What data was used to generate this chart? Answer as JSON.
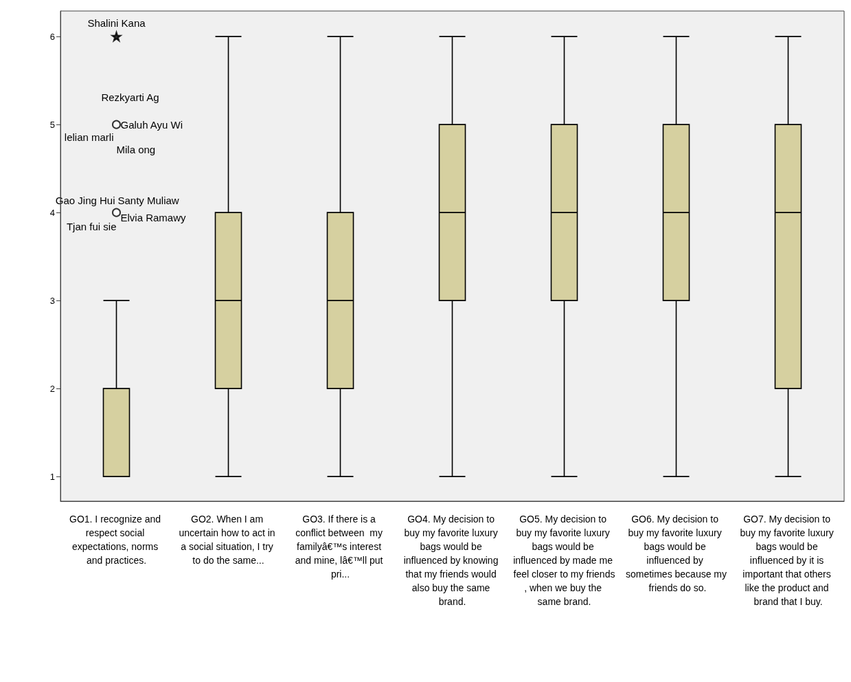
{
  "chart_data": {
    "type": "box",
    "categories": [
      "GO1. I recognize and respect social expectations, norms and practices.",
      "GO2. When I am uncertain how to act in a social situation, I try to do the same...",
      "GO3. If there is a conflict between  my familyâ€™s interest and mine, lâ€™ll put pri...",
      "GO4. My decision to buy my favorite luxury bags would be influenced by knowing that my friends would also buy the same brand.",
      "GO5. My decision to buy my favorite luxury bags would be influenced by made me feel closer to my friends, when we buy the same brand.",
      "GO6. My decision to buy my favorite luxury bags would be influenced by sometimes because my friends do so.",
      "GO7. My decision to buy my favorite luxury bags would be influenced by it is important that others like the product and brand that I buy."
    ],
    "series": [
      {
        "type": "box",
        "color": "#d6d0a0",
        "boxes": [
          {
            "low": 1,
            "q1": 1,
            "median": 2,
            "q3": 2,
            "high": 3
          },
          {
            "low": 1,
            "q1": 2,
            "median": 3,
            "q3": 4,
            "high": 6
          },
          {
            "low": 1,
            "q1": 2,
            "median": 3,
            "q3": 4,
            "high": 6
          },
          {
            "low": 1,
            "q1": 3,
            "median": 4,
            "q3": 5,
            "high": 6
          },
          {
            "low": 1,
            "q1": 3,
            "median": 4,
            "q3": 5,
            "high": 6
          },
          {
            "low": 1,
            "q1": 3,
            "median": 4,
            "q3": 5,
            "high": 6
          },
          {
            "low": 1,
            "q1": 2,
            "median": 4,
            "q3": 5,
            "high": 6
          }
        ]
      },
      {
        "type": "scatter",
        "marker": "circle",
        "color": "#000000",
        "x": [
          "GO1. I recognize and respect social expectations, norms and practices.",
          "GO1. I recognize and respect social expectations, norms and practices."
        ],
        "values": [
          4,
          5
        ]
      },
      {
        "type": "scatter",
        "marker": "star",
        "color": "#000000",
        "x": [
          "GO1. I recognize and respect social expectations, norms and practices."
        ],
        "values": [
          6
        ]
      }
    ],
    "ylim": [
      0.72,
      6.29
    ],
    "yticks": [
      1,
      2,
      3,
      4,
      5,
      6
    ],
    "annotations": [
      {
        "text": "Shalini Kana",
        "x": "GO1. I recognize and respect social expectations, norms and practices.",
        "y": 6
      },
      {
        "text": "Rezkyarti Ag",
        "x": "GO1. I recognize and respect social expectations, norms and practices.",
        "y": 5
      },
      {
        "text": "Galuh Ayu Wi",
        "x": "GO1. I recognize and respect social expectations, norms and practices.",
        "y": 5
      },
      {
        "text": "lelian marli",
        "x": "GO1. I recognize and respect social expectations, norms and practices.",
        "y": 5
      },
      {
        "text": "Mila ong",
        "x": "GO1. I recognize and respect social expectations, norms and practices.",
        "y": 5
      },
      {
        "text": "Gao Jing Hui",
        "x": "GO1. I recognize and respect social expectations, norms and practices.",
        "y": 4
      },
      {
        "text": "Santy Muliaw",
        "x": "GO1. I recognize and respect social expectations, norms and practices.",
        "y": 4
      },
      {
        "text": "Elvia Ramawy",
        "x": "GO1. I recognize and respect social expectations, norms and practices.",
        "y": 4
      },
      {
        "text": "Tjan fui sie",
        "x": "GO1. I recognize and respect social expectations, norms and practices.",
        "y": 4
      }
    ]
  }
}
